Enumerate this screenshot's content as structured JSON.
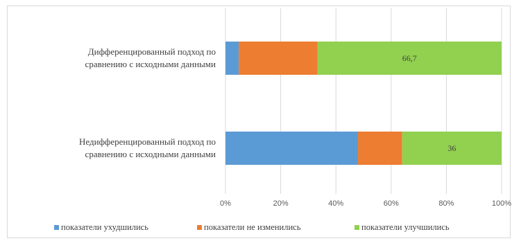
{
  "chart_data": {
    "type": "bar",
    "orientation": "horizontal",
    "stacked": true,
    "percent_stacked": true,
    "categories": [
      [
        "Дифференцированный подход  по",
        "сравнению с исходными данными"
      ],
      [
        "Недифференцированный подход  по",
        "сравнению с исходными данными"
      ]
    ],
    "series": [
      {
        "name": "показатели ухудшились",
        "color": "#5b9bd5",
        "values": [
          4.8,
          48.0
        ],
        "labels": [
          "",
          ""
        ]
      },
      {
        "name": "показатели не изменились",
        "color": "#ed7d31",
        "values": [
          28.5,
          16.0
        ],
        "labels": [
          "",
          ""
        ]
      },
      {
        "name": "показатели улучшились",
        "color": "#92d050",
        "values": [
          66.7,
          36.0
        ],
        "labels": [
          "66,7",
          "36"
        ]
      }
    ],
    "xlim": [
      0,
      100
    ],
    "xticks": [
      "0%",
      "20%",
      "40%",
      "60%",
      "80%",
      "100%"
    ],
    "grid": true,
    "legend": "bottom",
    "title": "",
    "xlabel": "",
    "ylabel": ""
  }
}
